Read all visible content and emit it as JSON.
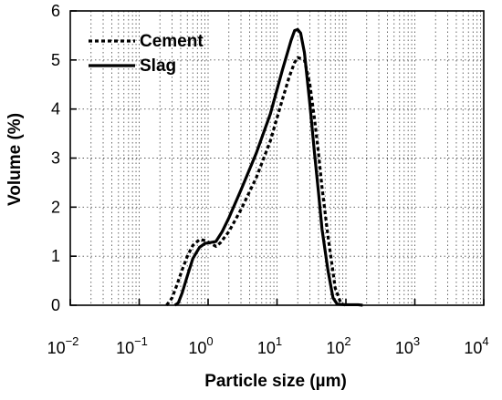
{
  "chart_data": {
    "type": "line",
    "xscale": "log",
    "xlim": [
      0.01,
      10000
    ],
    "ylim": [
      0,
      6
    ],
    "yticks": [
      0,
      1,
      2,
      3,
      4,
      5,
      6
    ],
    "xticks": [
      {
        "base": "10",
        "exp": "−2",
        "value": 0.01
      },
      {
        "base": "10",
        "exp": "−1",
        "value": 0.1
      },
      {
        "base": "10",
        "exp": "0",
        "value": 1
      },
      {
        "base": "10",
        "exp": "1",
        "value": 10
      },
      {
        "base": "10",
        "exp": "2",
        "value": 100
      },
      {
        "base": "10",
        "exp": "3",
        "value": 1000
      },
      {
        "base": "10",
        "exp": "4",
        "value": 10000
      }
    ],
    "xlabel": "Particle size (µm)",
    "ylabel": "Volume (%)",
    "grid": "dotted, major and minor",
    "legend_position": "top-left",
    "series": [
      {
        "name": "Cement",
        "style": "dotted",
        "color": "#000000",
        "points": [
          [
            0.25,
            0
          ],
          [
            0.3,
            0.15
          ],
          [
            0.35,
            0.4
          ],
          [
            0.42,
            0.72
          ],
          [
            0.5,
            1.0
          ],
          [
            0.6,
            1.22
          ],
          [
            0.75,
            1.34
          ],
          [
            0.9,
            1.32
          ],
          [
            1.1,
            1.26
          ],
          [
            1.3,
            1.2
          ],
          [
            1.5,
            1.27
          ],
          [
            2,
            1.5
          ],
          [
            3,
            1.95
          ],
          [
            5,
            2.6
          ],
          [
            8,
            3.35
          ],
          [
            12,
            4.2
          ],
          [
            15,
            4.65
          ],
          [
            18,
            4.95
          ],
          [
            20,
            5.05
          ],
          [
            25,
            5.0
          ],
          [
            30,
            4.5
          ],
          [
            35,
            3.8
          ],
          [
            40,
            3.1
          ],
          [
            45,
            2.4
          ],
          [
            55,
            1.4
          ],
          [
            70,
            0.35
          ],
          [
            85,
            0.03
          ],
          [
            100,
            0
          ]
        ]
      },
      {
        "name": "Slag",
        "style": "solid",
        "color": "#000000",
        "points": [
          [
            0.33,
            0
          ],
          [
            0.37,
            0.05
          ],
          [
            0.42,
            0.25
          ],
          [
            0.5,
            0.6
          ],
          [
            0.6,
            0.95
          ],
          [
            0.75,
            1.18
          ],
          [
            0.9,
            1.26
          ],
          [
            1.1,
            1.28
          ],
          [
            1.3,
            1.3
          ],
          [
            1.6,
            1.5
          ],
          [
            2,
            1.78
          ],
          [
            3,
            2.35
          ],
          [
            5,
            3.1
          ],
          [
            8,
            3.9
          ],
          [
            12,
            4.8
          ],
          [
            16,
            5.4
          ],
          [
            18,
            5.6
          ],
          [
            20,
            5.62
          ],
          [
            22,
            5.55
          ],
          [
            25,
            5.15
          ],
          [
            30,
            4.1
          ],
          [
            35,
            3.1
          ],
          [
            40,
            2.3
          ],
          [
            45,
            1.55
          ],
          [
            55,
            0.7
          ],
          [
            65,
            0.15
          ],
          [
            75,
            0.02
          ],
          [
            100,
            0.01
          ],
          [
            150,
            0.01
          ],
          [
            175,
            0
          ]
        ]
      }
    ]
  }
}
